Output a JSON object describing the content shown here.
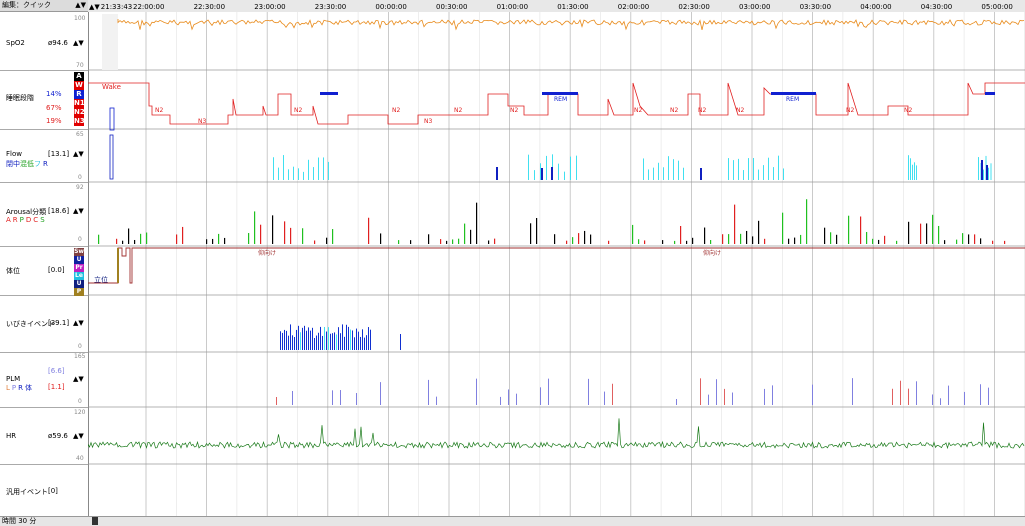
{
  "header": {
    "mode_label": "編集：クイック",
    "arrows": "▲▼",
    "start_time": "21:33:43"
  },
  "time_ticks": [
    "22:00:00",
    "22:30:00",
    "23:00:00",
    "23:30:00",
    "00:00:00",
    "00:30:00",
    "01:00:00",
    "01:30:00",
    "02:00:00",
    "02:30:00",
    "03:00:00",
    "03:30:00",
    "04:00:00",
    "04:30:00",
    "05:00:00"
  ],
  "channels": {
    "spo2": {
      "name": "SpO2",
      "value": "ø94.6",
      "scale_top": "100",
      "scale_bottom": "70"
    },
    "sleep": {
      "name": "睡眠段階",
      "stages": [
        "A",
        "W",
        "R",
        "N1",
        "N2",
        "N3"
      ],
      "pct": {
        "R": "14%",
        "N2": "67%",
        "N3": "19%"
      },
      "wake_label": "Wake",
      "labels": [
        {
          "t": "N2",
          "x": 155
        },
        {
          "t": "N3",
          "x": 198
        },
        {
          "t": "N2",
          "x": 294
        },
        {
          "t": "N2",
          "x": 392
        },
        {
          "t": "N3",
          "x": 424
        },
        {
          "t": "N2",
          "x": 454
        },
        {
          "t": "N2",
          "x": 510
        },
        {
          "t": "REM",
          "x": 554
        },
        {
          "t": "N2",
          "x": 634
        },
        {
          "t": "N2",
          "x": 670
        },
        {
          "t": "N2",
          "x": 698
        },
        {
          "t": "N2",
          "x": 736
        },
        {
          "t": "REM",
          "x": 786
        },
        {
          "t": "N2",
          "x": 846
        },
        {
          "t": "N2",
          "x": 904
        }
      ]
    },
    "flow": {
      "name": "Flow",
      "legend": [
        "閉",
        "中",
        "混",
        "低",
        "フ",
        "R"
      ],
      "value": "[13.1]",
      "scale_top": "65",
      "scale_bottom": "0"
    },
    "arousal": {
      "name": "Arousal分類",
      "legend": [
        "A",
        "R",
        "P",
        "D",
        "C",
        "S"
      ],
      "value": "[18.6]",
      "scale_top": "92",
      "scale_bottom": "0"
    },
    "position": {
      "name": "体位",
      "value": "[0.0]",
      "boxes": [
        "Sw",
        "U",
        "Pr",
        "Le",
        "U",
        "P"
      ],
      "label_standing": "立位",
      "label_supine": "仰向け"
    },
    "snore": {
      "name": "いびきイベント",
      "value": "[39.1]",
      "scale_bottom": "0"
    },
    "plm": {
      "name": "PLM",
      "legend": [
        "L",
        "P",
        "R",
        "体"
      ],
      "value_a": "[6.6]",
      "value_b": "[1.1]",
      "scale_top": "165",
      "scale_bottom": "0"
    },
    "hr": {
      "name": "HR",
      "value": "ø59.6",
      "scale_top": "120",
      "scale_bottom": "40"
    },
    "general": {
      "name": "汎用イベント",
      "value": "[0]"
    }
  },
  "footer": {
    "label": "時間 30 分"
  },
  "colors": {
    "spo2": "#e88a1a",
    "hypno": "#e02020",
    "rem": "#1020d0",
    "flow_light": "#40e0f0",
    "flow_dark": "#1020c0",
    "arousal_black": "#000000",
    "arousal_green": "#20c020",
    "arousal_red": "#e02020",
    "position": "#a03030",
    "snore": "#1030d0",
    "plm": "#8080e0",
    "hr": "#1a7a1a",
    "grid": "#d8d8d8"
  }
}
